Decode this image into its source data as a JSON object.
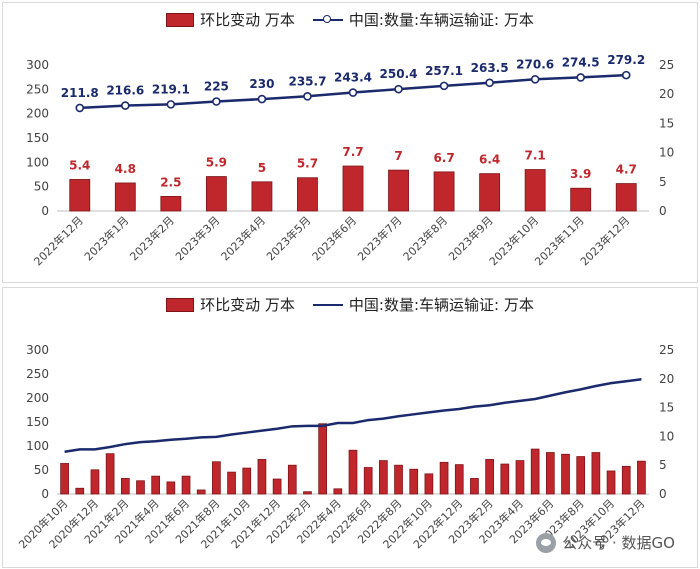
{
  "chart_data": [
    {
      "type": "bar+line",
      "legend": {
        "bar_label": "环比变动 万本",
        "line_label": "中国:数量:车辆运输证: 万本"
      },
      "categories": [
        "2022年12月",
        "2023年1月",
        "2023年2月",
        "2023年3月",
        "2023年4月",
        "2023年5月",
        "2023年6月",
        "2023年7月",
        "2023年8月",
        "2023年9月",
        "2023年10月",
        "2023年11月",
        "2023年12月"
      ],
      "series": [
        {
          "name": "环比变动 万本",
          "axis": "right",
          "type": "bar",
          "color": "#c0272d",
          "values": [
            5.4,
            4.8,
            2.5,
            5.9,
            5,
            5.7,
            7.7,
            7,
            6.7,
            6.4,
            7.1,
            3.9,
            4.7
          ],
          "labels": [
            "5.4",
            "4.8",
            "2.5",
            "5.9",
            "5",
            "5.7",
            "7.7",
            "7",
            "6.7",
            "6.4",
            "7.1",
            "3.9",
            "4.7"
          ]
        },
        {
          "name": "中国:数量:车辆运输证: 万本",
          "axis": "left",
          "type": "line",
          "color": "#1a2a6c",
          "values": [
            211.8,
            216.6,
            219.1,
            225,
            230,
            235.7,
            243.4,
            250.4,
            257.1,
            263.5,
            270.6,
            274.5,
            279.2
          ],
          "labels": [
            "211.8",
            "216.6",
            "219.1",
            "225",
            "230",
            "235.7",
            "243.4",
            "250.4",
            "257.1",
            "263.5",
            "270.6",
            "274.5",
            "279.2"
          ]
        }
      ],
      "y_left": {
        "min": 0,
        "max": 300,
        "ticks": [
          "0",
          "50",
          "100",
          "150",
          "200",
          "250",
          "300"
        ]
      },
      "y_right": {
        "min": 0,
        "max": 25,
        "ticks": [
          "0",
          "5",
          "10",
          "15",
          "20",
          "25"
        ]
      }
    },
    {
      "type": "bar+line",
      "legend": {
        "bar_label": "环比变动 万本",
        "line_label": "中国:数量:车辆运输证: 万本"
      },
      "categories": [
        "2020年10月",
        "2020年11月",
        "2020年12月",
        "2021年1月",
        "2021年2月",
        "2021年3月",
        "2021年4月",
        "2021年5月",
        "2021年6月",
        "2021年7月",
        "2021年8月",
        "2021年9月",
        "2021年10月",
        "2021年11月",
        "2021年12月",
        "2022年1月",
        "2022年2月",
        "2022年3月",
        "2022年4月",
        "2022年5月",
        "2022年6月",
        "2022年7月",
        "2022年8月",
        "2022年9月",
        "2022年10月",
        "2022年11月",
        "2022年12月",
        "2023年1月",
        "2023年2月",
        "2023年3月",
        "2023年4月",
        "2023年5月",
        "2023年6月",
        "2023年7月",
        "2023年8月",
        "2023年9月",
        "2023年10月",
        "2023年11月",
        "2023年12月"
      ],
      "tick_labels": [
        "2020年10月",
        "2020年12月",
        "2021年2月",
        "2021年4月",
        "2021年6月",
        "2021年8月",
        "2021年10月",
        "2021年12月",
        "2022年2月",
        "2022年4月",
        "2022年6月",
        "2022年8月",
        "2022年10月",
        "2022年12月",
        "2023年2月",
        "2023年4月",
        "2023年6月",
        "2023年8月",
        "2023年10月",
        "2023年12月"
      ],
      "series": [
        {
          "name": "环比变动 万本",
          "axis": "right",
          "type": "bar",
          "color": "#c0272d",
          "values": [
            5.3,
            1,
            4.2,
            7,
            2.7,
            2.3,
            3.1,
            2.1,
            3.1,
            0.7,
            5.6,
            3.8,
            4.5,
            6,
            2.6,
            5,
            0.4,
            12.2,
            0.9,
            7.6,
            4.6,
            5.8,
            5,
            4.3,
            3.5,
            5.5,
            5.1,
            2.7,
            6,
            5.2,
            5.8,
            7.8,
            7.2,
            6.9,
            6.5,
            7.2,
            4,
            4.8,
            5.7
          ],
          "labels": []
        },
        {
          "name": "中国:数量:车辆运输证: 万本",
          "axis": "left",
          "type": "line",
          "color": "#1a2a6c",
          "values": [
            88,
            93,
            93,
            98,
            104,
            108,
            110,
            113,
            115,
            118,
            119,
            124,
            128,
            132,
            136,
            141,
            142,
            142,
            148,
            148,
            154,
            157,
            162,
            166,
            170,
            174,
            177,
            182,
            185,
            190,
            194,
            198,
            205,
            212,
            218,
            225,
            231,
            235,
            239
          ],
          "labels": []
        }
      ],
      "y_left": {
        "min": 0,
        "max": 300,
        "ticks": [
          "0",
          "50",
          "100",
          "150",
          "200",
          "250",
          "300"
        ]
      },
      "y_right": {
        "min": 0,
        "max": 25,
        "ticks": [
          "0",
          "5",
          "10",
          "15",
          "20",
          "25"
        ]
      }
    }
  ],
  "watermark": {
    "text": "公众号 · 数据GO",
    "icon": "wechat-icon"
  }
}
